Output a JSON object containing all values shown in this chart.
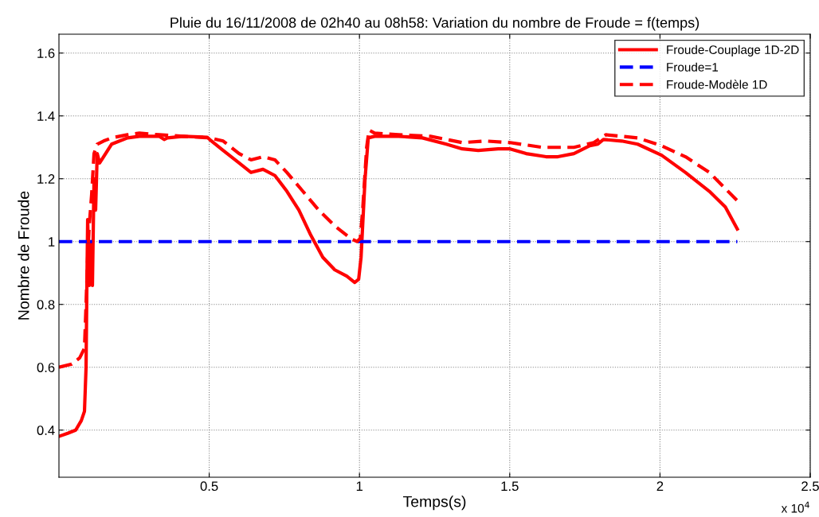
{
  "chart_data": {
    "type": "line",
    "title": "Pluie du 16/11/2008 de 02h40 au 08h58: Variation du nombre de Froude = f(temps)",
    "xlabel": "Temps(s)",
    "ylabel": "Nombre de Froude",
    "xlim": [
      0,
      2.5
    ],
    "ylim": [
      0.25,
      1.66
    ],
    "xticks": [
      0.5,
      1,
      1.5,
      2,
      2.5
    ],
    "yticks": [
      0.4,
      0.6,
      0.8,
      1,
      1.2,
      1.4,
      1.6
    ],
    "grid": true,
    "legend": "top right",
    "marker": "none",
    "annotations": [
      "x 10$^{4}$"
    ],
    "series": [
      {
        "name": "Froude-Couplage 1D-2D",
        "color": "#ff0000",
        "line_style": "solid",
        "x": [
          0,
          0.0292,
          0.0557,
          0.0743,
          0.0849,
          0.0902,
          0.0928,
          0.0955,
          0.1008,
          0.1061,
          0.1114,
          0.1167,
          0.122,
          0.1273,
          0.1353,
          0.1485,
          0.1751,
          0.2016,
          0.2281,
          0.2679,
          0.3342,
          0.3501,
          0.3607,
          0.4138,
          0.4934,
          0.5013,
          0.5464,
          0.5995,
          0.6393,
          0.679,
          0.7188,
          0.7586,
          0.7984,
          0.8382,
          0.878,
          0.9178,
          0.9576,
          0.9841,
          0.9973,
          1.0053,
          1.0106,
          1.0186,
          1.0292,
          1.0504,
          1.13,
          1.2095,
          1.2891,
          1.3422,
          1.3952,
          1.4615,
          1.5013,
          1.5544,
          1.6207,
          1.6605,
          1.7136,
          1.7666,
          1.7931,
          1.8117,
          1.8727,
          1.9257,
          2.0053,
          2.0849,
          2.1644,
          2.2175,
          2.2573
        ],
        "values": [
          0.38,
          0.39,
          0.4,
          0.43,
          0.46,
          0.6,
          0.85,
          1.07,
          0.86,
          1.0,
          0.86,
          1.2,
          1.1,
          1.28,
          1.25,
          1.27,
          1.31,
          1.32,
          1.33,
          1.335,
          1.335,
          1.325,
          1.33,
          1.335,
          1.332,
          1.325,
          1.29,
          1.25,
          1.22,
          1.23,
          1.21,
          1.16,
          1.1,
          1.02,
          0.95,
          0.91,
          0.89,
          0.87,
          0.88,
          0.95,
          1.05,
          1.2,
          1.33,
          1.335,
          1.335,
          1.33,
          1.31,
          1.295,
          1.29,
          1.295,
          1.295,
          1.28,
          1.27,
          1.27,
          1.28,
          1.305,
          1.31,
          1.325,
          1.32,
          1.31,
          1.275,
          1.22,
          1.16,
          1.11,
          1.04
        ]
      },
      {
        "name": "Froude=1",
        "color": "#0000ff",
        "line_style": "dashed",
        "x": [
          0,
          2.2573
        ],
        "values": [
          1,
          1
        ]
      },
      {
        "name": "Froude-Modèle 1D",
        "color": "#ff0000",
        "line_style": "dashed",
        "x": [
          0,
          0.0425,
          0.069,
          0.0849,
          0.0902,
          0.0955,
          0.1008,
          0.1088,
          0.1167,
          0.1273,
          0.1485,
          0.1751,
          0.2281,
          0.2679,
          0.3342,
          0.4138,
          0.5013,
          0.5464,
          0.5995,
          0.6393,
          0.679,
          0.7188,
          0.7586,
          0.8117,
          0.8647,
          0.9178,
          0.9708,
          0.992,
          1.0027,
          1.0106,
          1.0239,
          1.0318,
          1.0504,
          1.13,
          1.2361,
          1.3422,
          1.4217,
          1.5013,
          1.6074,
          1.7136,
          1.7799,
          1.8197,
          1.9257,
          2.0053,
          2.0849,
          2.1644,
          2.2573
        ],
        "values": [
          0.6,
          0.61,
          0.63,
          0.66,
          0.8,
          0.95,
          1.05,
          1.15,
          1.28,
          1.31,
          1.32,
          1.33,
          1.34,
          1.345,
          1.34,
          1.335,
          1.33,
          1.32,
          1.28,
          1.26,
          1.27,
          1.26,
          1.22,
          1.16,
          1.1,
          1.05,
          1.01,
          1.0,
          1.01,
          1.1,
          1.3,
          1.355,
          1.345,
          1.34,
          1.335,
          1.315,
          1.32,
          1.315,
          1.3,
          1.3,
          1.315,
          1.34,
          1.33,
          1.305,
          1.27,
          1.22,
          1.13
        ]
      }
    ]
  }
}
